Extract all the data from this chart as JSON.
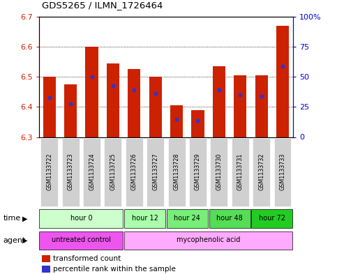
{
  "title": "GDS5265 / ILMN_1726464",
  "samples": [
    "GSM1133722",
    "GSM1133723",
    "GSM1133724",
    "GSM1133725",
    "GSM1133726",
    "GSM1133727",
    "GSM1133728",
    "GSM1133729",
    "GSM1133730",
    "GSM1133731",
    "GSM1133732",
    "GSM1133733"
  ],
  "bar_bottoms": [
    6.3,
    6.3,
    6.3,
    6.3,
    6.3,
    6.3,
    6.3,
    6.3,
    6.3,
    6.3,
    6.3,
    6.3
  ],
  "bar_tops": [
    6.5,
    6.475,
    6.6,
    6.545,
    6.525,
    6.5,
    6.405,
    6.39,
    6.535,
    6.505,
    6.505,
    6.67
  ],
  "percentile_values": [
    6.43,
    6.41,
    6.5,
    6.47,
    6.455,
    6.445,
    6.36,
    6.355,
    6.455,
    6.44,
    6.435,
    6.535
  ],
  "ylim_left": [
    6.3,
    6.7
  ],
  "ylim_right": [
    0,
    100
  ],
  "yticks_left": [
    6.3,
    6.4,
    6.5,
    6.6,
    6.7
  ],
  "yticks_right": [
    0,
    25,
    50,
    75,
    100
  ],
  "bar_color": "#cc2200",
  "percentile_color": "#3333cc",
  "bar_width": 0.6,
  "time_groups": [
    {
      "label": "hour 0",
      "start": 0,
      "end": 4,
      "color": "#ccffcc"
    },
    {
      "label": "hour 12",
      "start": 4,
      "end": 6,
      "color": "#aaffaa"
    },
    {
      "label": "hour 24",
      "start": 6,
      "end": 8,
      "color": "#77ee77"
    },
    {
      "label": "hour 48",
      "start": 8,
      "end": 10,
      "color": "#55dd55"
    },
    {
      "label": "hour 72",
      "start": 10,
      "end": 12,
      "color": "#22cc22"
    }
  ],
  "agent_groups": [
    {
      "label": "untreated control",
      "start": 0,
      "end": 4,
      "color": "#ee55ee"
    },
    {
      "label": "mycophenolic acid",
      "start": 4,
      "end": 12,
      "color": "#ffaaff"
    }
  ],
  "time_row_label": "time",
  "agent_row_label": "agent",
  "legend_items": [
    {
      "label": "transformed count",
      "color": "#cc2200"
    },
    {
      "label": "percentile rank within the sample",
      "color": "#3333cc"
    }
  ],
  "sample_box_color": "#d0d0d0",
  "bg_color": "#ffffff",
  "axis_left_color": "#cc2200",
  "axis_right_color": "#0000cc"
}
